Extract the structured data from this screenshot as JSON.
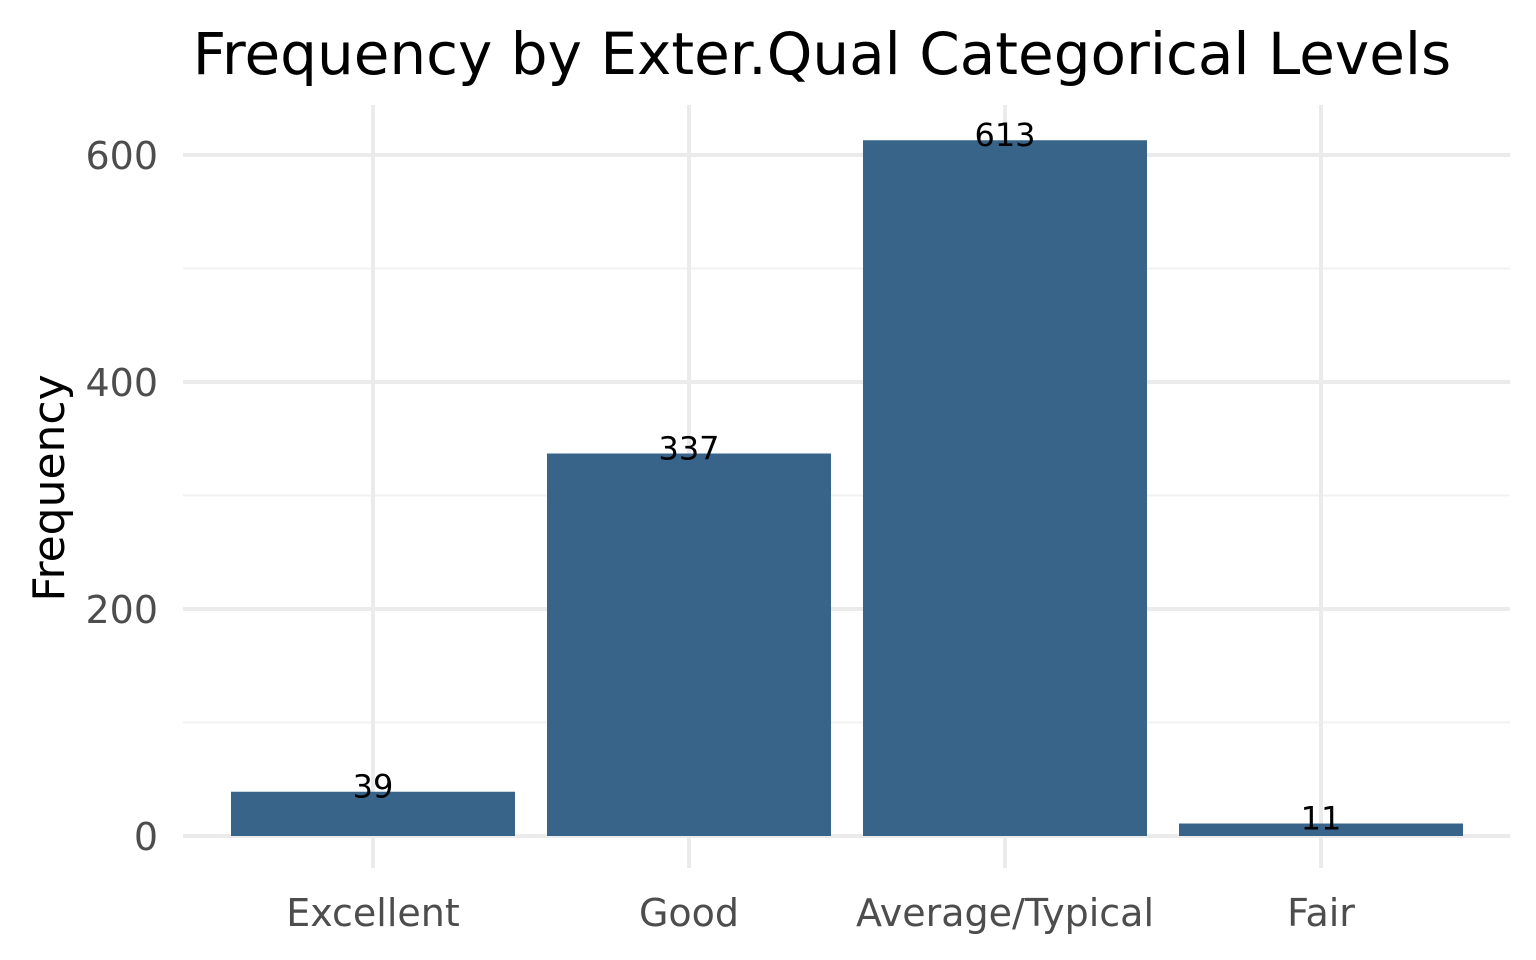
{
  "chart_data": {
    "type": "bar",
    "title": "Frequency by Exter.Qual Categorical Levels",
    "xlabel": "",
    "ylabel": "Frequency",
    "categories": [
      "Excellent",
      "Good",
      "Average/Typical",
      "Fair"
    ],
    "values": [
      39,
      337,
      613,
      11
    ],
    "data_labels": [
      "39",
      "337",
      "613",
      "11"
    ],
    "ylim": [
      0,
      645
    ],
    "yticks": [
      0,
      200,
      400,
      600
    ],
    "ytick_labels": [
      "0",
      "200",
      "400",
      "600"
    ],
    "grid": true,
    "legend": "none",
    "bar_color": "#386489"
  }
}
